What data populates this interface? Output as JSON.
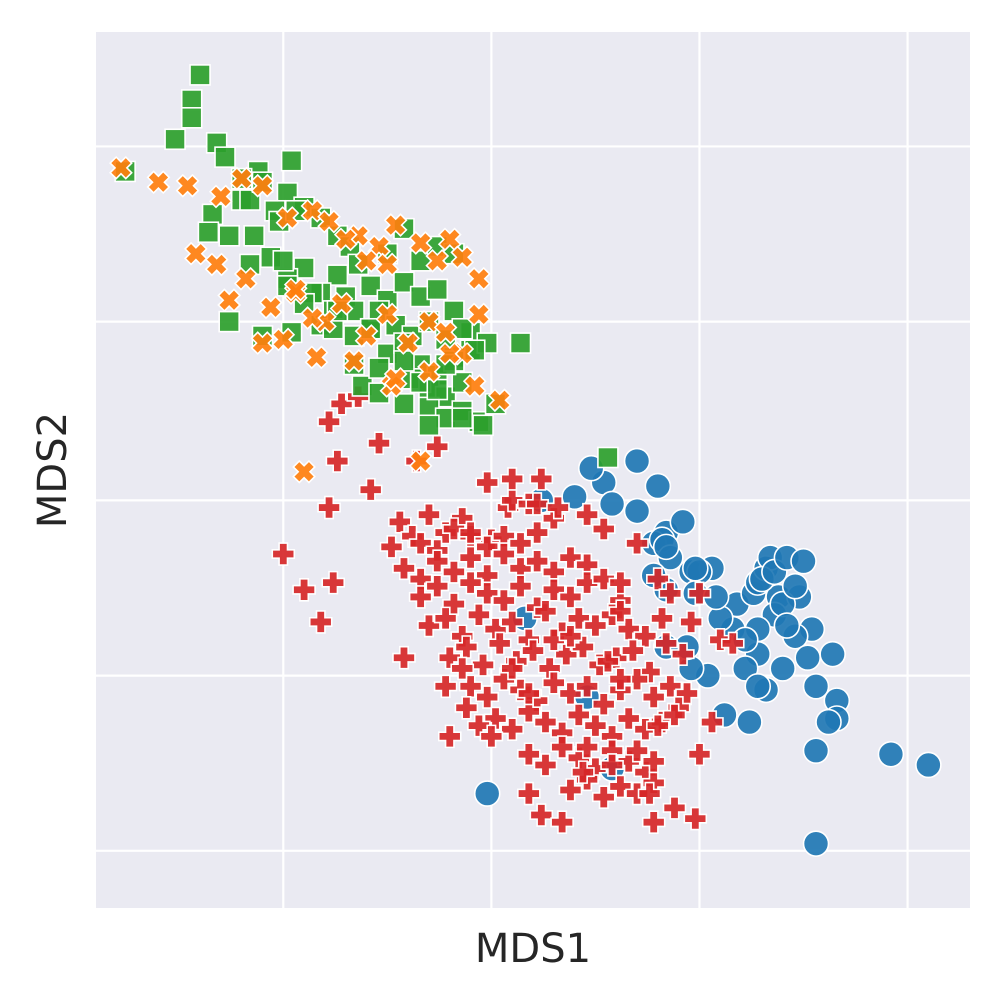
{
  "chart_data": {
    "type": "scatter",
    "xlabel": "MDS1",
    "ylabel": "MDS2",
    "xlim": [
      -0.9,
      1.2
    ],
    "ylim": [
      -1.0,
      1.45
    ],
    "xticks": [
      -0.45,
      0.05,
      0.55,
      1.05
    ],
    "yticks": [
      -0.84,
      -0.35,
      0.14,
      0.64,
      1.13
    ],
    "grid": true,
    "legend": "none",
    "colors": {
      "background": "#eaeaf2",
      "grid": "#ffffff"
    },
    "series": [
      {
        "marker": "circle",
        "color": "#1f77b4",
        "x": [
          0.25,
          0.17,
          0.32,
          0.4,
          0.29,
          0.34,
          0.45,
          0.4,
          0.47,
          0.44,
          0.46,
          0.48,
          0.51,
          0.53,
          0.58,
          0.55,
          0.64,
          0.68,
          0.69,
          0.71,
          0.72,
          0.74,
          0.7,
          0.73,
          0.76,
          0.73,
          0.8,
          0.79,
          0.82,
          0.75,
          0.75,
          0.78,
          0.81,
          0.69,
          0.66,
          0.63,
          0.71,
          0.61,
          0.67,
          0.57,
          0.53,
          0.69,
          0.76,
          0.78,
          0.87,
          0.88,
          0.88,
          0.86,
          0.83,
          1.01,
          1.1,
          0.83,
          0.47,
          0.54,
          0.66,
          0.28,
          0.69,
          0.47,
          0.13,
          0.04,
          0.34,
          0.83,
          0.6,
          0.52,
          0.47,
          0.44,
          0.54,
          0.59
        ],
        "y": [
          0.15,
          0.14,
          0.19,
          0.25,
          0.23,
          0.13,
          0.18,
          0.11,
          0.05,
          0.02,
          0.03,
          -0.02,
          0.08,
          -0.06,
          -0.05,
          -0.06,
          -0.15,
          -0.12,
          -0.09,
          -0.05,
          -0.02,
          -0.13,
          -0.08,
          -0.06,
          -0.02,
          -0.18,
          -0.03,
          -0.13,
          -0.22,
          -0.15,
          -0.33,
          -0.24,
          -0.3,
          -0.29,
          -0.33,
          -0.22,
          -0.39,
          -0.46,
          -0.48,
          -0.35,
          -0.33,
          -0.22,
          -0.21,
          -0.1,
          -0.29,
          -0.42,
          -0.47,
          -0.48,
          -0.56,
          -0.57,
          -0.6,
          -0.38,
          -0.11,
          -0.12,
          -0.25,
          -0.41,
          -0.38,
          0.01,
          -0.19,
          -0.68,
          -0.61,
          -0.82,
          -0.19,
          -0.27,
          -0.27,
          -0.07,
          -0.05,
          -0.13
        ]
      },
      {
        "marker": "cross",
        "color": "#d62728",
        "x": [
          0.09,
          -0.45,
          -0.33,
          -0.4,
          -0.36,
          -0.34,
          -0.32,
          -0.24,
          -0.17,
          -0.1,
          -0.06,
          -0.02,
          0.05,
          0.1,
          0.14,
          -0.19,
          -0.14,
          -0.12,
          -0.08,
          -0.04,
          0.0,
          0.04,
          0.08,
          0.12,
          0.16,
          0.2,
          -0.16,
          -0.12,
          -0.08,
          -0.04,
          0.0,
          0.04,
          0.08,
          0.12,
          0.16,
          0.2,
          0.24,
          0.28,
          -0.12,
          -0.08,
          -0.04,
          0.0,
          0.04,
          0.08,
          0.12,
          0.16,
          0.2,
          0.24,
          0.28,
          0.32,
          0.36,
          -0.1,
          -0.06,
          -0.02,
          0.02,
          0.06,
          0.1,
          0.14,
          0.18,
          0.22,
          0.26,
          0.3,
          0.34,
          0.38,
          0.42,
          0.46,
          -0.05,
          -0.01,
          0.03,
          0.07,
          0.11,
          0.15,
          0.19,
          0.23,
          0.27,
          0.31,
          0.35,
          0.39,
          0.43,
          0.47,
          0.51,
          0.0,
          0.04,
          0.08,
          0.12,
          0.16,
          0.2,
          0.24,
          0.28,
          0.32,
          0.36,
          0.4,
          0.44,
          0.48,
          0.52,
          0.06,
          0.1,
          0.14,
          0.18,
          0.22,
          0.26,
          0.3,
          0.34,
          0.38,
          0.42,
          0.46,
          0.5,
          0.14,
          0.18,
          0.22,
          0.26,
          0.3,
          0.34,
          0.38,
          0.42,
          0.24,
          0.28,
          0.32,
          0.36,
          0.4,
          0.44,
          -0.34,
          -0.31,
          -0.27,
          -0.22,
          -0.13,
          -0.08,
          0.0,
          0.04,
          0.1,
          0.16,
          0.17,
          0.21,
          0.28,
          0.32,
          0.36,
          0.36,
          0.4,
          0.45,
          0.48,
          0.55,
          0.53,
          0.6,
          0.63,
          0.14,
          0.17,
          0.22,
          0.28,
          0.27,
          0.34,
          0.43,
          0.44,
          0.49,
          0.54,
          0.4,
          0.44,
          0.49,
          0.36,
          0.33,
          -0.16,
          -0.06,
          -0.01,
          0.1,
          0.02,
          0.2,
          0.14,
          0.24,
          0.05,
          -0.02,
          0.45,
          0.55,
          0.58,
          -0.05
        ],
        "y": [
          0.12,
          -0.01,
          -0.09,
          -0.11,
          -0.2,
          0.12,
          0.25,
          0.17,
          0.08,
          0.1,
          0.05,
          0.09,
          0.03,
          0.14,
          0.13,
          0.01,
          0.04,
          0.02,
          0.0,
          0.06,
          0.04,
          0.01,
          0.04,
          0.02,
          0.05,
          0.09,
          -0.05,
          -0.08,
          -0.03,
          -0.06,
          -0.02,
          -0.07,
          -0.01,
          -0.05,
          -0.03,
          -0.06,
          -0.02,
          -0.04,
          -0.13,
          -0.1,
          -0.15,
          -0.09,
          -0.12,
          -0.14,
          -0.1,
          -0.16,
          -0.11,
          -0.13,
          -0.09,
          -0.08,
          -0.14,
          -0.21,
          -0.19,
          -0.24,
          -0.18,
          -0.22,
          -0.2,
          -0.25,
          -0.17,
          -0.23,
          -0.19,
          -0.21,
          -0.18,
          -0.22,
          -0.24,
          -0.19,
          -0.3,
          -0.27,
          -0.32,
          -0.26,
          -0.31,
          -0.28,
          -0.33,
          -0.29,
          -0.27,
          -0.32,
          -0.3,
          -0.28,
          -0.34,
          -0.26,
          -0.29,
          -0.38,
          -0.41,
          -0.36,
          -0.39,
          -0.42,
          -0.37,
          -0.4,
          -0.38,
          -0.43,
          -0.39,
          -0.36,
          -0.41,
          -0.38,
          -0.4,
          -0.47,
          -0.5,
          -0.45,
          -0.48,
          -0.51,
          -0.46,
          -0.49,
          -0.52,
          -0.47,
          -0.5,
          -0.48,
          -0.44,
          -0.57,
          -0.6,
          -0.55,
          -0.58,
          -0.61,
          -0.56,
          -0.59,
          -0.62,
          -0.67,
          -0.64,
          -0.69,
          -0.66,
          -0.68,
          -0.65,
          0.36,
          0.41,
          0.43,
          0.3,
          0.25,
          0.29,
          0.05,
          0.19,
          0.2,
          0.13,
          0.2,
          0.12,
          0.1,
          0.06,
          -0.09,
          -0.17,
          0.02,
          -0.08,
          -0.12,
          -0.12,
          -0.2,
          -0.25,
          -0.26,
          -0.68,
          -0.74,
          -0.76,
          -0.55,
          -0.62,
          -0.6,
          -0.68,
          -0.76,
          -0.72,
          -0.75,
          -0.56,
          -0.59,
          -0.46,
          -0.36,
          -0.31,
          -0.3,
          -0.38,
          -0.44,
          -0.33,
          -0.49,
          -0.25,
          -0.4,
          -0.24,
          -0.52,
          -0.33,
          -0.49,
          -0.57,
          -0.48,
          -0.52
        ]
      },
      {
        "marker": "square",
        "color": "#2ca02c",
        "x": [
          -0.83,
          -0.71,
          -0.65,
          -0.67,
          -0.67,
          -0.61,
          -0.59,
          -0.55,
          -0.51,
          -0.55,
          -0.53,
          -0.5,
          -0.44,
          -0.4,
          -0.43,
          -0.47,
          -0.46,
          -0.42,
          -0.36,
          -0.32,
          -0.29,
          -0.27,
          -0.32,
          -0.3,
          -0.28,
          -0.24,
          -0.2,
          -0.16,
          -0.12,
          -0.08,
          -0.04,
          -0.24,
          -0.2,
          -0.16,
          -0.12,
          -0.08,
          -0.04,
          0.0,
          -0.22,
          -0.18,
          -0.14,
          -0.1,
          -0.06,
          -0.02,
          -0.2,
          -0.16,
          -0.12,
          -0.08,
          -0.04,
          0.0,
          0.04,
          -0.14,
          -0.1,
          -0.06,
          -0.02,
          -0.1,
          -0.06,
          -0.02,
          0.02,
          0.06,
          -0.52,
          -0.58,
          -0.62,
          -0.63,
          -0.48,
          -0.53,
          -0.4,
          -0.44,
          -0.36,
          -0.33,
          -0.28,
          -0.28,
          -0.36,
          -0.26,
          -0.22,
          -0.16,
          -0.1,
          -0.22,
          -0.12,
          -0.08,
          -0.02,
          0.03,
          -0.44,
          -0.38,
          -0.43,
          -0.33,
          -0.58,
          -0.5,
          -0.4,
          -0.04,
          0.01,
          0.12,
          0.33,
          -0.45,
          -0.32,
          -0.24,
          -0.16,
          -0.06
        ],
        "y": [
          1.06,
          1.15,
          1.33,
          1.26,
          1.21,
          1.14,
          1.1,
          0.98,
          1.06,
          1.04,
          0.98,
          1.03,
          1.0,
          0.96,
          1.09,
          0.95,
          0.92,
          0.95,
          0.93,
          0.88,
          0.85,
          0.8,
          0.77,
          0.71,
          0.67,
          0.62,
          0.83,
          0.9,
          0.81,
          0.85,
          0.83,
          0.74,
          0.7,
          0.75,
          0.71,
          0.73,
          0.67,
          0.61,
          0.67,
          0.63,
          0.6,
          0.64,
          0.59,
          0.62,
          0.55,
          0.58,
          0.52,
          0.49,
          0.54,
          0.56,
          0.58,
          0.48,
          0.45,
          0.43,
          0.47,
          0.4,
          0.37,
          0.39,
          0.36,
          0.41,
          0.88,
          0.88,
          0.94,
          0.89,
          0.82,
          0.8,
          0.79,
          0.76,
          0.72,
          0.67,
          0.6,
          0.52,
          0.63,
          0.46,
          0.44,
          0.41,
          0.35,
          0.51,
          0.47,
          0.45,
          0.37,
          0.35,
          0.74,
          0.72,
          0.61,
          0.62,
          0.64,
          0.6,
          0.69,
          0.53,
          0.56,
          0.58,
          0.26,
          0.81,
          0.67,
          0.62,
          0.53,
          0.52
        ]
      },
      {
        "marker": "x",
        "color": "#ff7f0e",
        "x": [
          -0.84,
          -0.75,
          -0.68,
          -0.6,
          -0.55,
          -0.5,
          -0.44,
          -0.38,
          -0.34,
          -0.27,
          -0.22,
          -0.18,
          -0.12,
          -0.08,
          -0.05,
          -0.02,
          0.02,
          -0.66,
          -0.61,
          -0.58,
          -0.54,
          -0.48,
          -0.42,
          -0.35,
          -0.31,
          -0.25,
          -0.2,
          -0.15,
          -0.1,
          -0.06,
          -0.02,
          0.02,
          -0.45,
          -0.37,
          -0.28,
          -0.19,
          -0.1,
          0.01,
          0.07,
          -0.5,
          -0.42,
          -0.3,
          -0.2,
          -0.05,
          -0.38,
          -0.25,
          -0.18,
          -0.4,
          -0.12
        ],
        "y": [
          1.07,
          1.03,
          1.02,
          0.99,
          1.04,
          1.02,
          0.93,
          0.95,
          0.92,
          0.88,
          0.85,
          0.91,
          0.86,
          0.81,
          0.87,
          0.82,
          0.76,
          0.83,
          0.8,
          0.7,
          0.76,
          0.68,
          0.72,
          0.64,
          0.69,
          0.6,
          0.66,
          0.58,
          0.64,
          0.61,
          0.55,
          0.66,
          0.59,
          0.54,
          0.53,
          0.46,
          0.5,
          0.46,
          0.42,
          0.58,
          0.73,
          0.87,
          0.8,
          0.55,
          0.65,
          0.81,
          0.48,
          0.22,
          0.25
        ]
      }
    ]
  }
}
